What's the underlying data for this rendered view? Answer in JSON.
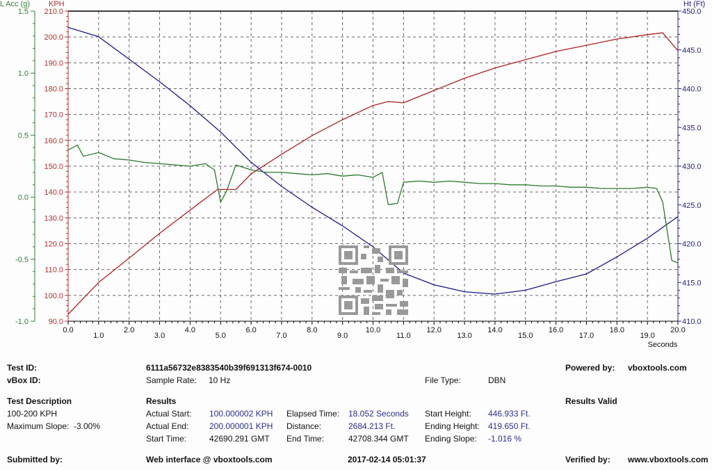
{
  "chart_data": {
    "type": "line",
    "title": "",
    "xlabel": "Seconds",
    "x_ticks": [
      "0.0",
      "1.0",
      "2.0",
      "3.0",
      "4.0",
      "5.0",
      "6.0",
      "7.0",
      "8.0",
      "9.0",
      "10.0",
      "11.0",
      "12.0",
      "13.0",
      "14.0",
      "15.0",
      "16.0",
      "17.0",
      "18.0",
      "19.0",
      "20.0"
    ],
    "xlim": [
      0,
      20
    ],
    "grid": true,
    "axes": {
      "left_outer": {
        "label": "L Acc (g)",
        "color": "#2e7d2e",
        "range": [
          -1.0,
          1.5
        ],
        "ticks": [
          "1.5",
          "1.0",
          "0.5",
          "0.0",
          "-0.5",
          "-1.0"
        ]
      },
      "left_inner": {
        "label": "KPH",
        "color": "#b03030",
        "range": [
          90,
          210
        ],
        "ticks": [
          "210.0",
          "200.0",
          "190.0",
          "180.0",
          "170.0",
          "160.0",
          "150.0",
          "140.0",
          "130.0",
          "120.0",
          "110.0",
          "100.0",
          "90.0"
        ]
      },
      "right": {
        "label": "Ht (Ft)",
        "color": "#1f1f80",
        "range": [
          410,
          450
        ],
        "ticks": [
          "450.0",
          "445.0",
          "440.0",
          "435.0",
          "430.0",
          "425.0",
          "420.0",
          "415.0",
          "410.0"
        ]
      }
    },
    "series": [
      {
        "name": "KPH",
        "axis": "left_inner",
        "color": "#b02020",
        "x": [
          0,
          1,
          2,
          3,
          4,
          4.9,
          5.5,
          6,
          7,
          8,
          9,
          10,
          10.5,
          11,
          12,
          13,
          14,
          15,
          16,
          17,
          18,
          19,
          19.5,
          20
        ],
        "values": [
          92.7,
          105,
          114.4,
          124,
          133,
          141,
          141,
          147,
          154.6,
          161.8,
          168,
          173.5,
          175,
          174.5,
          179.3,
          184,
          188,
          191.2,
          194.4,
          196.8,
          199.2,
          200.9,
          201.6,
          194.7
        ]
      },
      {
        "name": "Ht (Ft)",
        "axis": "right",
        "color": "#1a1a8c",
        "x": [
          0,
          1,
          2,
          3,
          4,
          5,
          6,
          7,
          8,
          9,
          10,
          11,
          12,
          13,
          14,
          15,
          16,
          17,
          18,
          19,
          20
        ],
        "values": [
          447.9,
          446.7,
          443.8,
          440.9,
          437.8,
          434.4,
          430.5,
          427.4,
          424.7,
          422.3,
          419.6,
          416.2,
          414.7,
          413.8,
          413.5,
          414.0,
          415.1,
          416.1,
          418.3,
          420.7,
          423.5
        ]
      },
      {
        "name": "L Acc (g)",
        "axis": "left_outer",
        "color": "#2a7a2a",
        "x": [
          0,
          0.3,
          0.5,
          1,
          1.5,
          2,
          2.5,
          3,
          3.5,
          4,
          4.5,
          4.8,
          5,
          5.2,
          5.5,
          6,
          6.5,
          7,
          7.5,
          8,
          8.5,
          9,
          9.5,
          10,
          10.3,
          10.5,
          10.8,
          11,
          11.5,
          12,
          12.5,
          13,
          13.5,
          14,
          14.5,
          15,
          15.5,
          16,
          16.5,
          17,
          17.5,
          18,
          18.5,
          19,
          19.3,
          19.5,
          19.8,
          20
        ],
        "values": [
          0.38,
          0.42,
          0.33,
          0.36,
          0.31,
          0.3,
          0.28,
          0.27,
          0.26,
          0.25,
          0.27,
          0.22,
          -0.04,
          0.05,
          0.26,
          0.22,
          0.2,
          0.2,
          0.19,
          0.18,
          0.19,
          0.17,
          0.18,
          0.16,
          0.2,
          -0.06,
          -0.05,
          0.12,
          0.13,
          0.12,
          0.13,
          0.12,
          0.11,
          0.11,
          0.1,
          0.1,
          0.09,
          0.09,
          0.08,
          0.08,
          0.07,
          0.07,
          0.07,
          0.08,
          0.07,
          -0.04,
          -0.51,
          -0.53
        ]
      }
    ]
  },
  "info": {
    "test_id_label": "Test ID:",
    "test_id_value": "6111a56732e8383540b39f691313f674-0010",
    "vbox_id_label": "vBox ID:",
    "sample_rate_label": "Sample Rate:",
    "sample_rate_value": "10 Hz",
    "file_type_label": "File Type:",
    "file_type_value": "DBN",
    "powered_by_label": "Powered by:",
    "powered_by_value": "vboxtools.com",
    "test_description_label": "Test Description",
    "test_description_value": "100-200 KPH",
    "max_slope_label": "Maximum Slope:",
    "max_slope_value": "-3.00%",
    "results_label": "Results",
    "results_valid": "Results Valid",
    "actual_start_label": "Actual Start:",
    "actual_start_value": "100.000002 KPH",
    "actual_end_label": "Actual End:",
    "actual_end_value": "200.000001 KPH",
    "start_time_label": "Start Time:",
    "start_time_value": "42690.291 GMT",
    "elapsed_label": "Elapsed Time:",
    "elapsed_value": "18.052 Seconds",
    "distance_label": "Distance:",
    "distance_value": "2684.213 Ft.",
    "end_time_label": "End Time:",
    "end_time_value": "42708.344 GMT",
    "start_height_label": "Start Height:",
    "start_height_value": "446.933 Ft.",
    "ending_height_label": "Ending Height:",
    "ending_height_value": "419.650 Ft.",
    "ending_slope_label": "Ending Slope:",
    "ending_slope_value": "-1.016 %",
    "submitted_by_label": "Submitted by:",
    "submitted_by_value": "Web interface @ vboxtools.com",
    "timestamp": "2017-02-14 05:01:37",
    "verified_by_label": "Verified by:",
    "verified_by_value": "www.vboxtools.com"
  },
  "qr": {
    "icon": "qr-code-icon"
  }
}
